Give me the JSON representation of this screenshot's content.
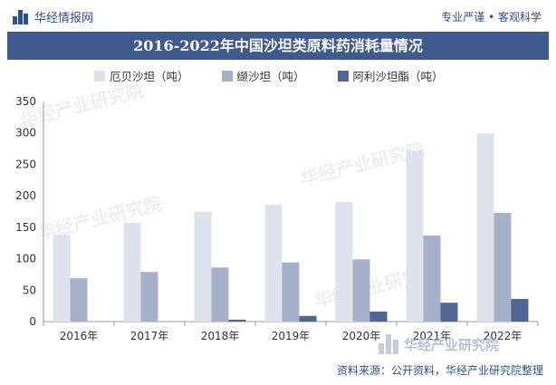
{
  "header": {
    "logo_text": "华经情报网",
    "tagline": "专业严谨 • 客观科学"
  },
  "footer": {
    "watermark_text": "华经产业研究院",
    "source": "资料来源：公开资料，华经产业研究院整理"
  },
  "colors": {
    "title_bg": "#3f5a8f",
    "brand": "#2d4f8c"
  },
  "chart_data": {
    "type": "bar",
    "title": "2016-2022年中国沙坦类原料药消耗量情况",
    "categories": [
      "2016年",
      "2017年",
      "2018年",
      "2019年",
      "2020年",
      "2021年",
      "2022年"
    ],
    "series": [
      {
        "name": "厄贝沙坦（吨）",
        "color": "#dde2ec",
        "values": [
          138,
          157,
          175,
          186,
          190,
          272,
          299
        ]
      },
      {
        "name": "缬沙坦（吨）",
        "color": "#a6b1c9",
        "values": [
          69,
          79,
          86,
          94,
          99,
          137,
          173
        ]
      },
      {
        "name": "阿利沙坦酯（吨）",
        "color": "#4f6594",
        "values": [
          0,
          0,
          3,
          9,
          16,
          30,
          36
        ]
      }
    ],
    "yticks": [
      0,
      50,
      100,
      150,
      200,
      250,
      300,
      350
    ],
    "ylim": [
      0,
      350
    ],
    "legend_position": "top",
    "grid": false
  }
}
